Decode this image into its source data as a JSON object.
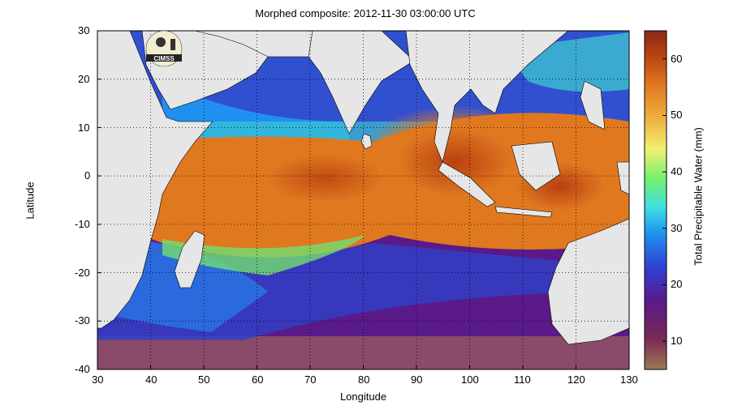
{
  "title": "Morphed composite: 2012-11-30 03:00:00 UTC",
  "logo_text": "CIMSS",
  "colors": {
    "land": "#e6e6e6",
    "coast": "#000000",
    "grid": "#000000",
    "colorbar_stops": [
      "#9b7a52",
      "#7a2a54",
      "#5a1a8a",
      "#3040d0",
      "#2090f0",
      "#40e0e0",
      "#70f070",
      "#f0f070",
      "#f0b040",
      "#e07820",
      "#b84010",
      "#8a2a18"
    ]
  },
  "chart_data": {
    "type": "heatmap",
    "title": "Morphed composite: 2012-11-30 03:00:00 UTC",
    "xlabel": "Longitude",
    "ylabel": "Latitude",
    "xlim": [
      30,
      130
    ],
    "ylim": [
      -40,
      30
    ],
    "x_ticks": [
      "30",
      "40",
      "50",
      "60",
      "70",
      "80",
      "90",
      "100",
      "110",
      "120",
      "130"
    ],
    "y_ticks": [
      "30",
      "20",
      "10",
      "0",
      "-10",
      "-20",
      "-30",
      "-40"
    ],
    "grid": true,
    "colorbar": {
      "label": "Total Precipitable Water (mm)",
      "range": [
        5,
        65
      ],
      "ticks": [
        "10",
        "20",
        "30",
        "40",
        "50",
        "60"
      ],
      "orientation": "vertical",
      "placement": "right"
    }
  }
}
